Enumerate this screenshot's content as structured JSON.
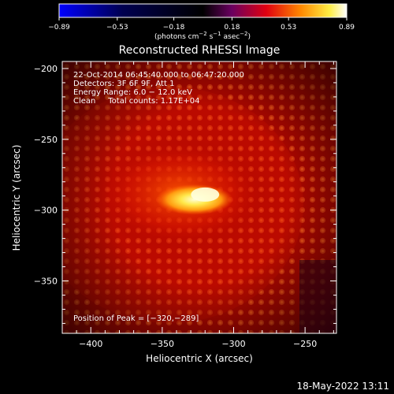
{
  "chart_data": {
    "type": "heatmap",
    "title": "Reconstructed RHESSI Image",
    "xlabel": "Heliocentric X (arcsec)",
    "ylabel": "Heliocentric Y (arcsec)",
    "xlim": [
      -420,
      -228
    ],
    "ylim": [
      -387,
      -195
    ],
    "x_ticks": [
      "−400",
      "−350",
      "−300",
      "−250"
    ],
    "x_tick_values": [
      -400,
      -350,
      -300,
      -250
    ],
    "y_ticks": [
      "−200",
      "−250",
      "−300",
      "−350"
    ],
    "y_tick_values": [
      -200,
      -250,
      -300,
      -350
    ],
    "colorbar": {
      "ticks": [
        "−0.89",
        "−0.53",
        "−0.18",
        "0.18",
        "0.53",
        "0.89"
      ],
      "tick_values": [
        -0.89,
        -0.53,
        -0.18,
        0.18,
        0.53,
        0.89
      ],
      "range": [
        -0.89,
        0.89
      ],
      "unit_prefix": "(photons cm",
      "unit_exp1": "−2",
      "unit_mid": " s",
      "unit_exp2": "−1",
      "unit_mid2": " asec",
      "unit_exp3": "−2",
      "unit_suffix": ")",
      "colormap": [
        "#0000ff",
        "#000000",
        "#800080",
        "#ff0000",
        "#ffa500",
        "#ffff66",
        "#ffffff"
      ]
    },
    "info_lines": [
      "22-Oct-2014 06:45:40.000 to 06:47:20.000",
      "Detectors: 3F 6F 9F, Att 1",
      "Energy Range: 6.0 − 12.0 keV",
      "Clean     Total counts: 1.17E+04"
    ],
    "peak_label": "Position of Peak = [−320,−289]",
    "peak_position": [
      -320,
      -289
    ],
    "source": {
      "x_range": [
        -350,
        -305
      ],
      "y_range": [
        -300,
        -285
      ]
    }
  },
  "timestamp": "18-May-2022 13:11"
}
